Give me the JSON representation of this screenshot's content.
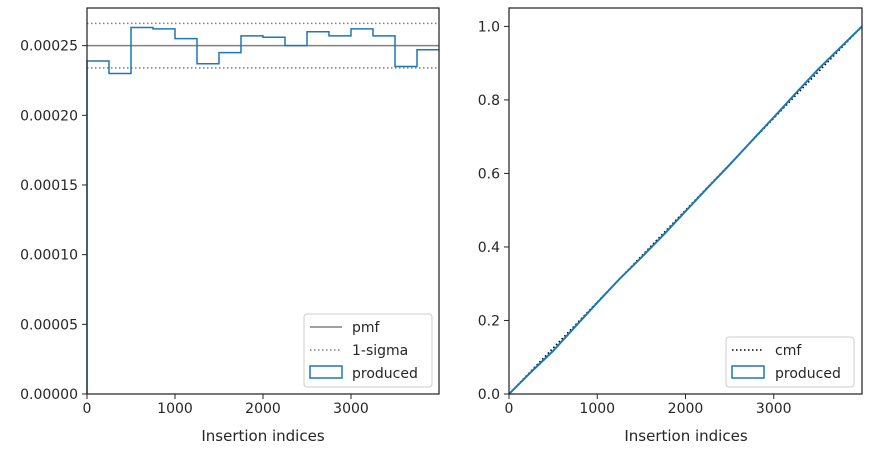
{
  "chart_data": [
    {
      "type": "step-histogram",
      "xlabel": "Insertion indices",
      "ylabel": "",
      "xlim": [
        0,
        4000
      ],
      "ylim": [
        0,
        0.000277
      ],
      "xticks": [
        0,
        1000,
        2000,
        3000
      ],
      "xtick_labels": [
        "0",
        "1000",
        "2000",
        "3000"
      ],
      "yticks": [
        0,
        5e-05,
        0.0001,
        0.00015,
        0.0002,
        0.00025
      ],
      "ytick_labels": [
        "0.00000",
        "0.00005",
        "0.00010",
        "0.00015",
        "0.00020",
        "0.00025"
      ],
      "bin_edges": [
        0,
        250,
        500,
        750,
        1000,
        1250,
        1500,
        1750,
        2000,
        2250,
        2500,
        2750,
        3000,
        3250,
        3500,
        3750,
        4000
      ],
      "series": [
        {
          "name": "produced",
          "color": "#1f77b4",
          "values": [
            0.000239,
            0.00023,
            0.000263,
            0.000262,
            0.000255,
            0.000237,
            0.000245,
            0.000257,
            0.000256,
            0.00025,
            0.00026,
            0.000257,
            0.000262,
            0.000257,
            0.000235,
            0.000247
          ]
        }
      ],
      "reference_lines": [
        {
          "name": "pmf",
          "y": 0.00025,
          "style": "solid",
          "color": "#808080"
        },
        {
          "name": "1-sigma",
          "y": 0.000266,
          "style": "dotted",
          "color": "#808080"
        },
        {
          "name": "",
          "y": 0.000234,
          "style": "dotted",
          "color": "#808080"
        }
      ],
      "legend": {
        "placement": "lower-right",
        "entries": [
          "pmf",
          "1-sigma",
          "produced"
        ]
      }
    },
    {
      "type": "line",
      "xlabel": "Insertion indices",
      "ylabel": "",
      "xlim": [
        0,
        4000
      ],
      "ylim": [
        0,
        1.05
      ],
      "xticks": [
        0,
        1000,
        2000,
        3000
      ],
      "xtick_labels": [
        "0",
        "1000",
        "2000",
        "3000"
      ],
      "yticks": [
        0,
        0.2,
        0.4,
        0.6,
        0.8,
        1.0
      ],
      "ytick_labels": [
        "0.0",
        "0.2",
        "0.4",
        "0.6",
        "0.8",
        "1.0"
      ],
      "series": [
        {
          "name": "cmf",
          "style": "dotted",
          "color": "#000000",
          "x": [
            0,
            4000
          ],
          "y": [
            0,
            1.0
          ]
        },
        {
          "name": "produced",
          "style": "solid",
          "color": "#1f77b4",
          "x": [
            0,
            250,
            500,
            750,
            1000,
            1250,
            1500,
            1750,
            2000,
            2250,
            2500,
            2750,
            3000,
            3250,
            3500,
            3750,
            4000
          ],
          "y": [
            0,
            0.0598,
            0.1173,
            0.183,
            0.2485,
            0.3123,
            0.3715,
            0.4328,
            0.497,
            0.561,
            0.6235,
            0.6885,
            0.7528,
            0.8183,
            0.8825,
            0.9413,
            1.0
          ]
        }
      ],
      "legend": {
        "placement": "lower-right",
        "entries": [
          "cmf",
          "produced"
        ]
      }
    }
  ]
}
